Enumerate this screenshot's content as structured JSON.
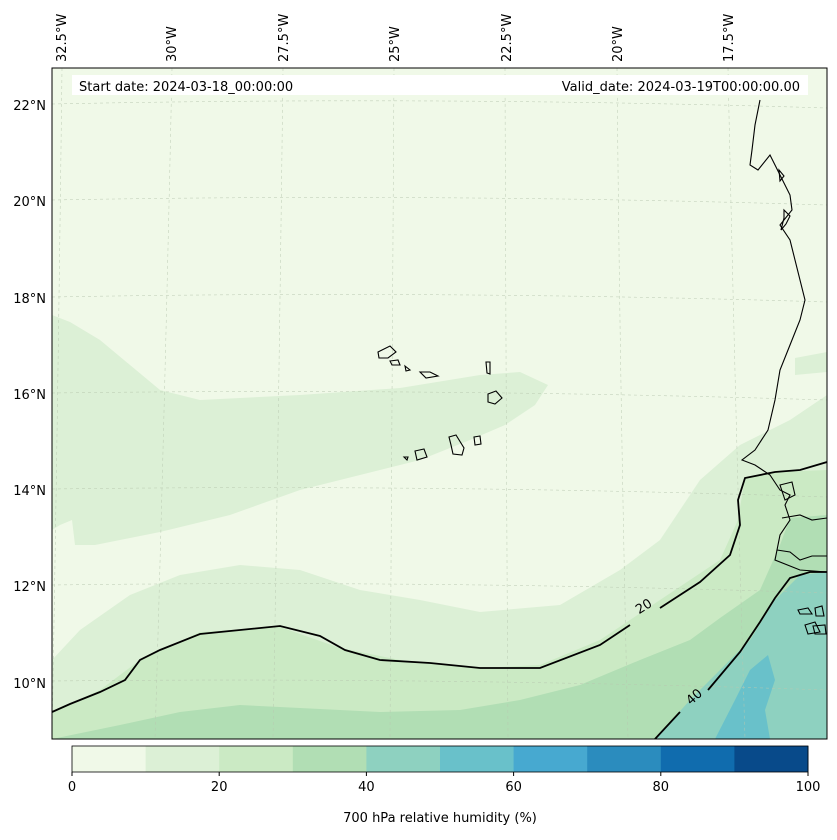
{
  "header": {
    "start_date": "Start date: 2024-03-18_00:00:00",
    "valid_date": "Valid_date: 2024-03-19T00:00:00.00"
  },
  "longitude_labels": [
    "32.5°W",
    "30°W",
    "27.5°W",
    "25°W",
    "22.5°W",
    "20°W",
    "17.5°W"
  ],
  "latitude_labels": [
    "22°N",
    "20°N",
    "18°N",
    "16°N",
    "14°N",
    "12°N",
    "10°N"
  ],
  "contour_labels": [
    "20",
    "40"
  ],
  "colorbar": {
    "label": "700 hPa relative humidity (%)",
    "tick_labels": [
      "0",
      "20",
      "40",
      "60",
      "80",
      "100"
    ],
    "min": 0,
    "max": 100,
    "colors": [
      "#f0f9e8",
      "#dcf0d6",
      "#cbeac4",
      "#b1deb4",
      "#8ed1c0",
      "#69c1ca",
      "#47a9d0",
      "#2b8cbe",
      "#106cae",
      "#084a8a"
    ]
  },
  "colors": {
    "coast": "#000000",
    "grid": "#b8c8b0"
  }
}
